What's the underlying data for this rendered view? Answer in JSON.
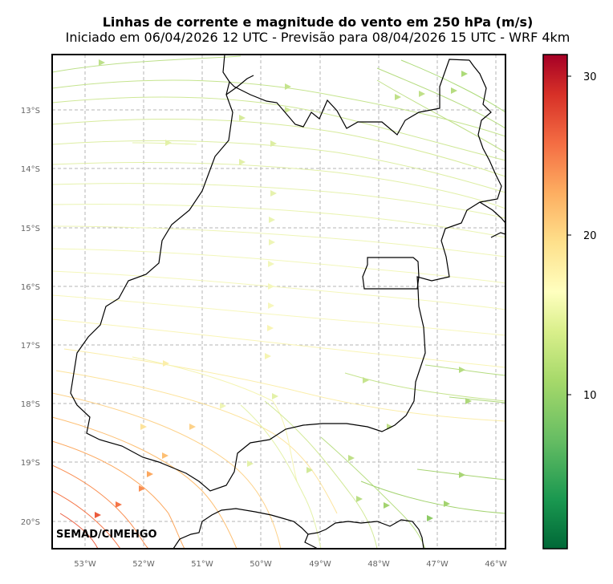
{
  "title": "Linhas de corrente e magnitude do vento em 250 hPa (m/s)",
  "subtitle": "Iniciado em 06/04/2026 12 UTC - Previsão para 08/04/2026 15 UTC - WRF 4km",
  "credit": "SEMAD/CIMEHGO",
  "map": {
    "lon_range": [
      -53.55,
      -45.85
    ],
    "lat_range": [
      -20.45,
      -12.0
    ],
    "grid": true,
    "lon_ticks": [
      "53°W",
      "52°W",
      "51°W",
      "50°W",
      "49°W",
      "48°W",
      "47°W",
      "46°W"
    ],
    "lat_ticks": [
      "13°S",
      "14°S",
      "15°S",
      "16°S",
      "17°S",
      "18°S",
      "19°S",
      "20°S"
    ],
    "boundary_icon": "state-boundary-line",
    "df_icon": "federal-district-outline",
    "colorscale": "RdYlGn_r",
    "colorbar": {
      "min": 0,
      "max": 31.5,
      "ticks": [
        "10",
        "20",
        "30"
      ],
      "tick_values": [
        10,
        20,
        30
      ]
    },
    "colors": {
      "low": "#006837",
      "mid": "#ffffbf",
      "high": "#a50026"
    }
  }
}
